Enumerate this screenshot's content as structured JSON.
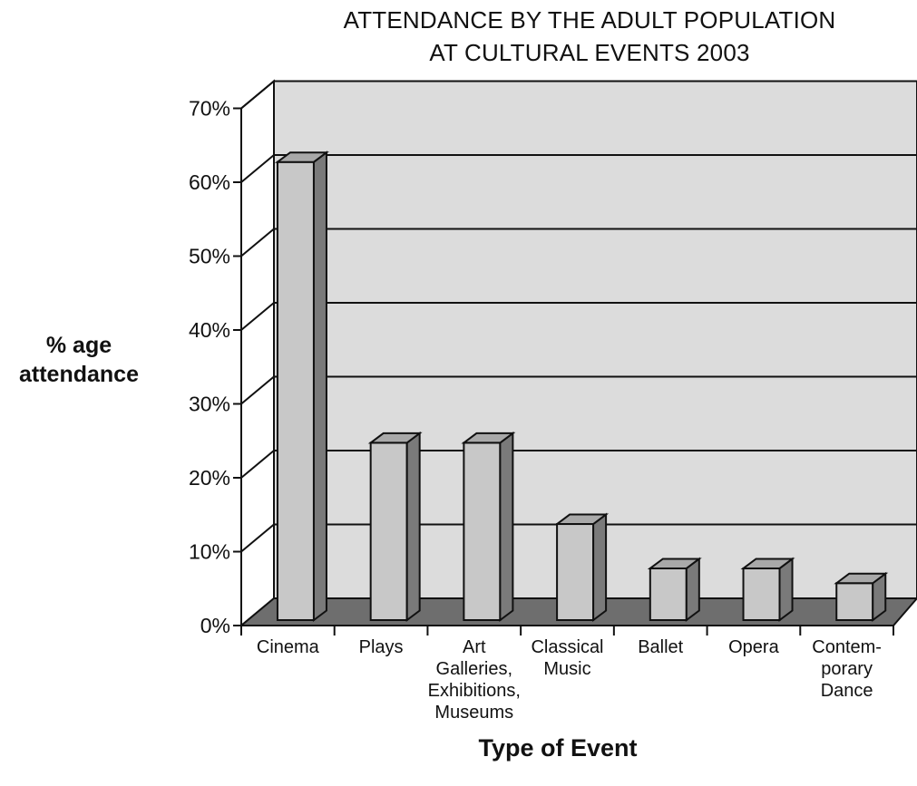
{
  "chart_data": {
    "type": "bar",
    "title_lines": [
      "ATTENDANCE BY THE ADULT POPULATION",
      "AT CULTURAL EVENTS 2003"
    ],
    "ylabel_lines": [
      "% age",
      "attendance"
    ],
    "xlabel": "Type of Event",
    "categories": [
      [
        "Cinema"
      ],
      [
        "Plays"
      ],
      [
        "Art",
        "Galleries,",
        "Exhibitions,",
        "Museums"
      ],
      [
        "Classical",
        "Music"
      ],
      [
        "Ballet"
      ],
      [
        "Opera"
      ],
      [
        "Contem-",
        "porary",
        "Dance"
      ]
    ],
    "values": [
      62,
      24,
      24,
      13,
      7,
      7,
      5
    ],
    "ylim": [
      0,
      70
    ],
    "yticks": [
      "0%",
      "10%",
      "20%",
      "30%",
      "40%",
      "50%",
      "60%",
      "70%"
    ],
    "grid": true,
    "colors": {
      "back_wall": "#dcdcdc",
      "floor": "#6e6e6e",
      "bar_front": "#c8c8c8",
      "bar_side": "#7a7a7a",
      "bar_top": "#a9a9a9",
      "line": "#111111"
    }
  }
}
